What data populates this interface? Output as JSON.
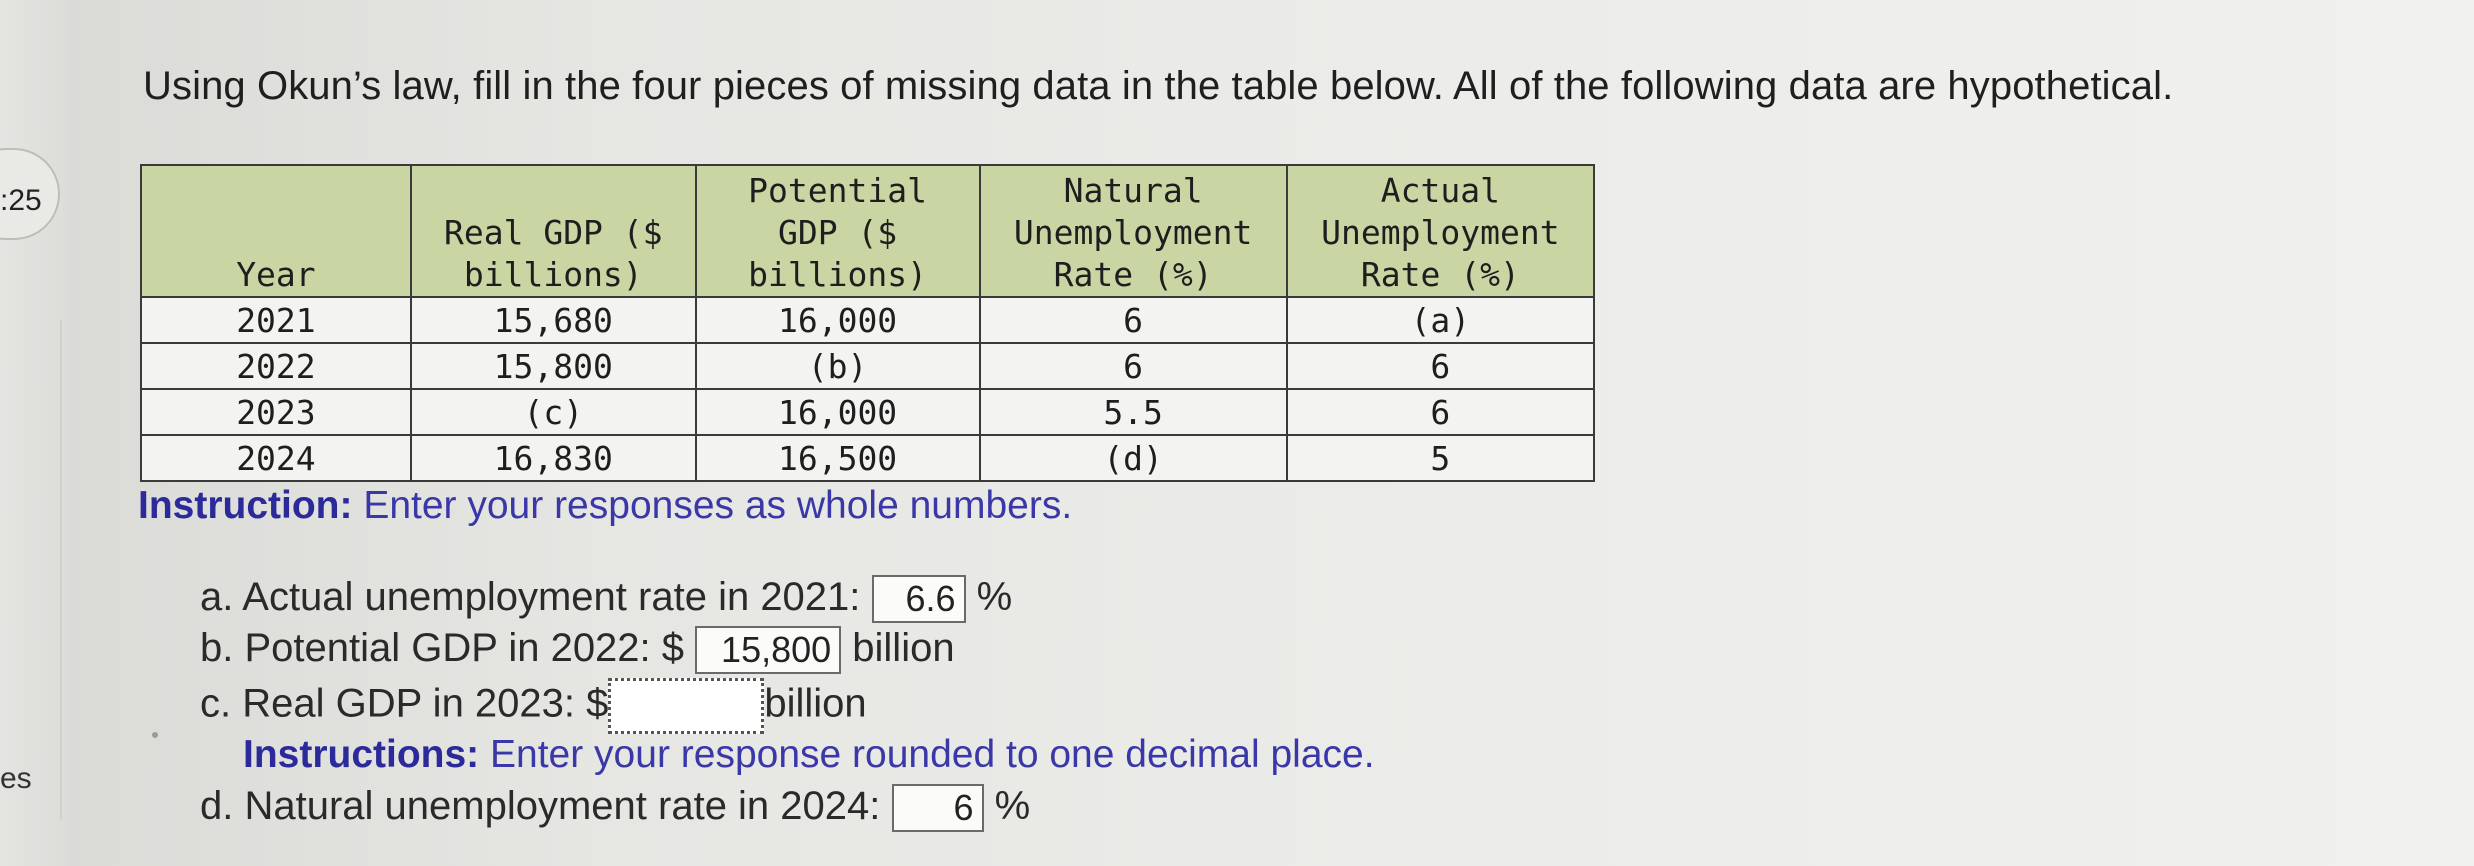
{
  "left_panel": {
    "timer": ":25",
    "side_label": "es"
  },
  "question": "Using Okun’s law, fill in the four pieces of missing data in the table below. All of the following data are hypothetical.",
  "table": {
    "headers": [
      [
        "Year"
      ],
      [
        "Real GDP ($",
        "billions)"
      ],
      [
        "Potential",
        "GDP ($",
        "billions)"
      ],
      [
        "Natural",
        "Unemployment",
        "Rate (%)"
      ],
      [
        "Actual",
        "Unemployment",
        "Rate (%)"
      ]
    ],
    "rows": [
      [
        "2021",
        "15,680",
        "16,000",
        "6",
        "(a)"
      ],
      [
        "2022",
        "15,800",
        "(b)",
        "6",
        "6"
      ],
      [
        "2023",
        "(c)",
        "16,000",
        "5.5",
        "6"
      ],
      [
        "2024",
        "16,830",
        "16,500",
        "(d)",
        "5"
      ]
    ]
  },
  "instruction": {
    "bold": "Instruction:",
    "text": " Enter your responses as whole numbers."
  },
  "answers": {
    "a": {
      "label": "a. Actual unemployment rate in 2021:",
      "value": "6.6",
      "suffix": "%"
    },
    "b": {
      "label": "b. Potential GDP in 2022: $",
      "value": "15,800",
      "suffix": "billion"
    },
    "c": {
      "label": "c. Real GDP in 2023: $",
      "value": "",
      "suffix": "billion"
    },
    "instructions_c": {
      "bold": "Instructions:",
      "text": " Enter your response rounded to one decimal place."
    },
    "d": {
      "label": "d. Natural unemployment rate in 2024:",
      "value": "6",
      "suffix": "%"
    }
  }
}
